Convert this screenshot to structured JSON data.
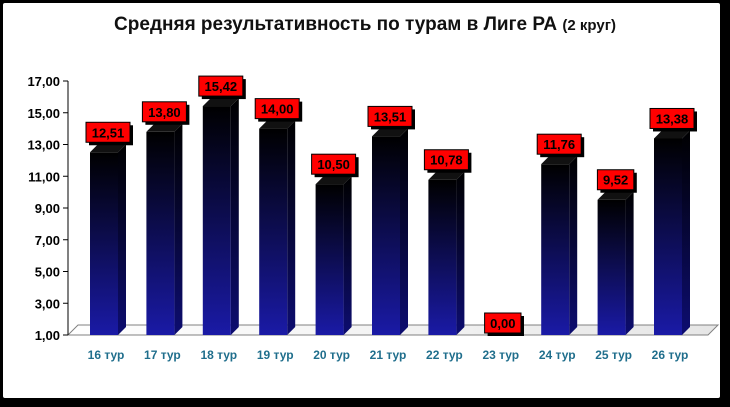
{
  "chart_data": {
    "type": "bar",
    "title": "Средняя результативность по турам в Лиге РА",
    "subtitle": "(2 круг)",
    "categories": [
      "16 тур",
      "17 тур",
      "18 тур",
      "19 тур",
      "20 тур",
      "21 тур",
      "22 тур",
      "23 тур",
      "24 тур",
      "25 тур",
      "26 тур"
    ],
    "values": [
      12.51,
      13.8,
      15.42,
      14.0,
      10.5,
      13.51,
      10.78,
      0.0,
      11.76,
      9.52,
      13.38
    ],
    "data_labels": [
      "12,51",
      "13,80",
      "15,42",
      "14,00",
      "10,50",
      "13,51",
      "10,78",
      "0,00",
      "11,76",
      "9,52",
      "13,38"
    ],
    "yticks": [
      "1,00",
      "3,00",
      "5,00",
      "7,00",
      "9,00",
      "11,00",
      "13,00",
      "15,00",
      "17,00"
    ],
    "ylim": [
      1,
      17
    ],
    "xlabel": "",
    "ylabel": "",
    "grid": false,
    "colors": {
      "bar_top": "#000000",
      "bar_bottom": "#1a1aa6",
      "label_bg": "#ff0000",
      "category_text": "#1f6e8c"
    }
  }
}
